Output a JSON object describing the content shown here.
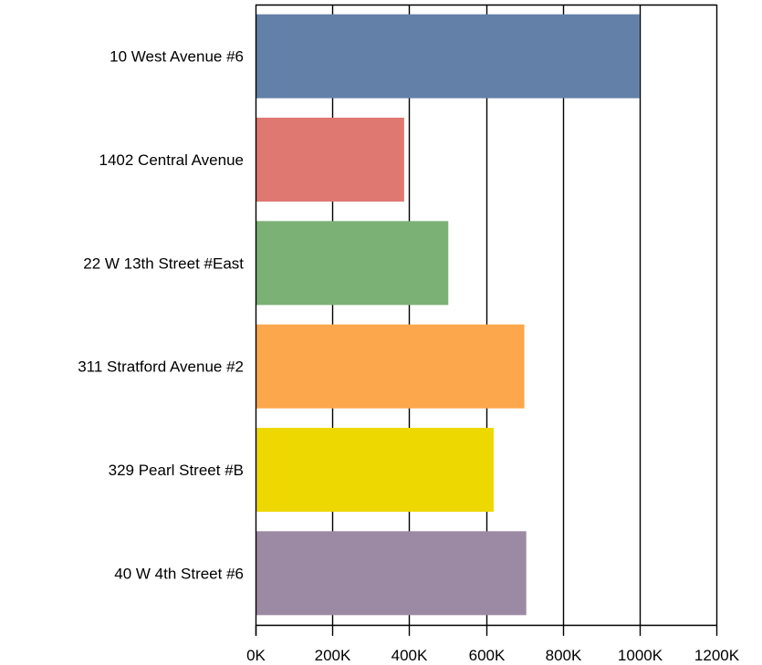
{
  "chart_data": {
    "type": "bar",
    "orientation": "horizontal",
    "title": "",
    "xlabel": "",
    "ylabel": "",
    "categories": [
      "10 West Avenue #6",
      "1402 Central Avenue",
      "22 W 13th Street #East",
      "311 Stratford Avenue #2",
      "329 Pearl Street #B",
      "40 W 4th Street #6"
    ],
    "values": [
      1000000,
      387000,
      502000,
      700000,
      620000,
      705000
    ],
    "colors": [
      "#6380a8",
      "#e07872",
      "#7cb176",
      "#fca74c",
      "#eed801",
      "#9c8aa4"
    ],
    "xlim": [
      0,
      1200000
    ],
    "xticks": [
      0,
      200000,
      400000,
      600000,
      800000,
      1000000,
      1200000
    ],
    "xtick_labels": [
      "0K",
      "200K",
      "400K",
      "600K",
      "800K",
      "1000K",
      "1200K"
    ],
    "grid": "vertical",
    "legend": "none"
  }
}
